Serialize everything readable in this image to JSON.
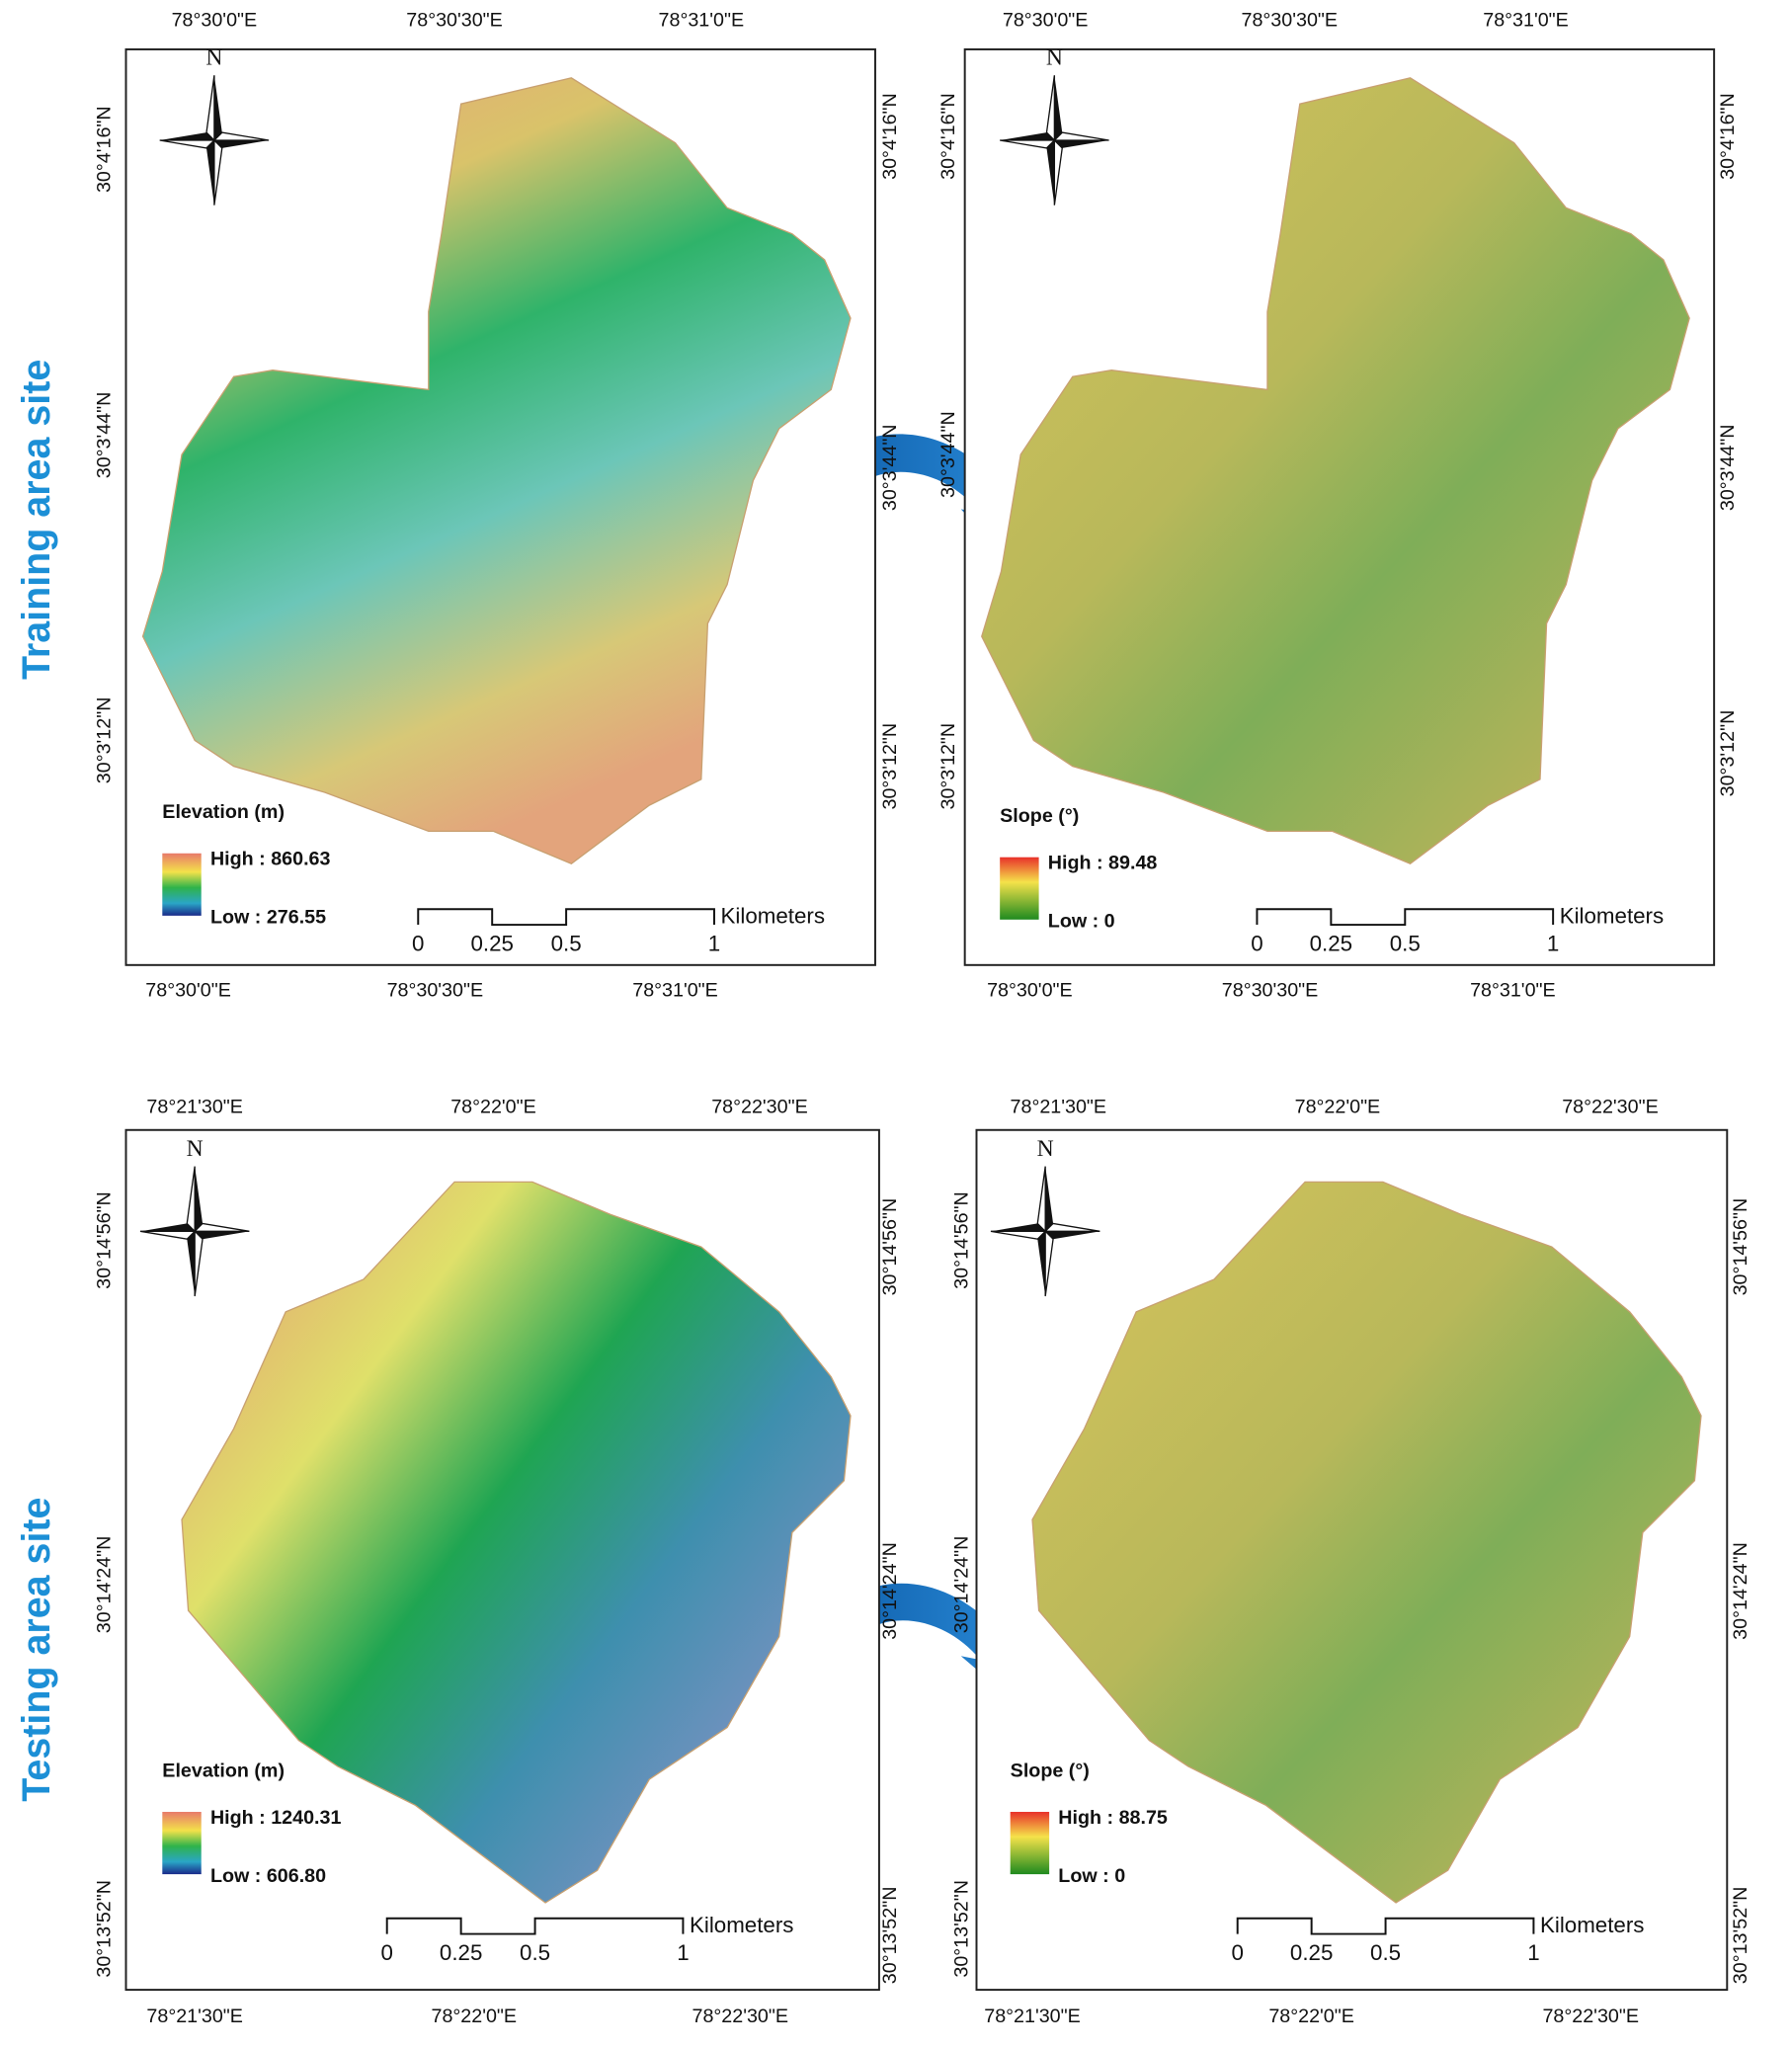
{
  "side_labels": [
    "Training area site",
    "Testing area site"
  ],
  "panels": [
    {
      "top_labels": [
        "78°30'0\"E",
        "78°30'30\"E",
        "78°31'0\"E"
      ],
      "bottom_labels": [
        "78°30'0\"E",
        "78°30'30\"E",
        "78°31'0\"E"
      ],
      "left_labels": [
        "30°4'16\"N",
        "30°3'44\"N",
        "30°3'12\"N"
      ],
      "right_labels": [
        "30°4'16\"N",
        "30°3'44\"N",
        "30°3'12\"N"
      ],
      "north": "N",
      "legend_title": "Elevation (m)",
      "legend_high": "High : 860.63",
      "legend_low": "Low : 276.55",
      "scale_labels": [
        "0",
        "0.25",
        "0.5",
        "1"
      ],
      "scale_unit": "Kilometers"
    },
    {
      "top_labels": [
        "78°30'0\"E",
        "78°30'30\"E",
        "78°31'0\"E"
      ],
      "bottom_labels": [
        "78°30'0\"E",
        "78°30'30\"E",
        "78°31'0\"E"
      ],
      "left_labels": [
        "30°4'16\"N",
        "30°3'44\"N",
        "30°3'12\"N"
      ],
      "right_labels": [
        "30°4'16\"N",
        "30°3'44\"N",
        "30°3'12\"N"
      ],
      "north": "N",
      "legend_title": "Slope (°)",
      "legend_high": "High : 89.48",
      "legend_low": "Low : 0",
      "scale_labels": [
        "0",
        "0.25",
        "0.5",
        "1"
      ],
      "scale_unit": "Kilometers"
    },
    {
      "top_labels": [
        "78°21'30\"E",
        "78°22'0\"E",
        "78°22'30\"E"
      ],
      "bottom_labels": [
        "78°21'30\"E",
        "78°22'0\"E",
        "78°22'30\"E"
      ],
      "left_labels": [
        "30°14'56\"N",
        "30°14'24\"N",
        "30°13'52\"N"
      ],
      "right_labels": [
        "30°14'56\"N",
        "30°14'24\"N",
        "30°13'52\"N"
      ],
      "north": "N",
      "legend_title": "Elevation (m)",
      "legend_high": "High : 1240.31",
      "legend_low": "Low : 606.80",
      "scale_labels": [
        "0",
        "0.25",
        "0.5",
        "1"
      ],
      "scale_unit": "Kilometers"
    },
    {
      "top_labels": [
        "78°21'30\"E",
        "78°22'0\"E",
        "78°22'30\"E"
      ],
      "bottom_labels": [
        "78°21'30\"E",
        "78°22'0\"E",
        "78°22'30\"E"
      ],
      "left_labels": [
        "30°14'56\"N",
        "30°14'24\"N",
        "30°13'52\"N"
      ],
      "right_labels": [
        "30°14'56\"N",
        "30°14'24\"N",
        "30°13'52\"N"
      ],
      "north": "N",
      "legend_title": "Slope (°)",
      "legend_high": "High : 88.75",
      "legend_low": "Low : 0",
      "scale_labels": [
        "0",
        "0.25",
        "0.5",
        "1"
      ],
      "scale_unit": "Kilometers"
    }
  ]
}
